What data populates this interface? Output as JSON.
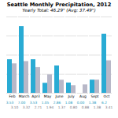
{
  "chart_data": {
    "type": "bar",
    "title": "Seattle Monthly Precipitation, 2012",
    "subtitle": "Yearly Total: 46.29\" (Avg: 37.49\")",
    "categories": [
      "Feb",
      "March",
      "April",
      "May",
      "June",
      "July",
      "Aug",
      "Sept",
      "Oct"
    ],
    "series": [
      {
        "color": "#29ABD4",
        "values": [
          3.53,
          7.0,
          3.53,
          1.05,
          2.86,
          1.08,
          0.0,
          1.38,
          6.2
        ],
        "value_labels": [
          "3.53",
          "7.00",
          "3.53",
          "1.05",
          "2.86",
          "1.08",
          "0.00",
          "1.38",
          "6.2"
        ]
      },
      {
        "color": "#B8B8C8",
        "values": [
          3.1,
          3.32,
          2.71,
          1.94,
          1.37,
          0.8,
          0.88,
          1.38,
          3.41
        ],
        "value_labels": [
          "3.10",
          "3.32",
          "2.71",
          "1.94",
          "1.37",
          "0.80",
          "0.88",
          "1.38",
          "3.41"
        ]
      }
    ],
    "ylim": [
      0,
      8
    ],
    "yticks": [
      0,
      2,
      4,
      6,
      8
    ],
    "grid": true,
    "data_labels": true,
    "tick_labels": "x"
  }
}
